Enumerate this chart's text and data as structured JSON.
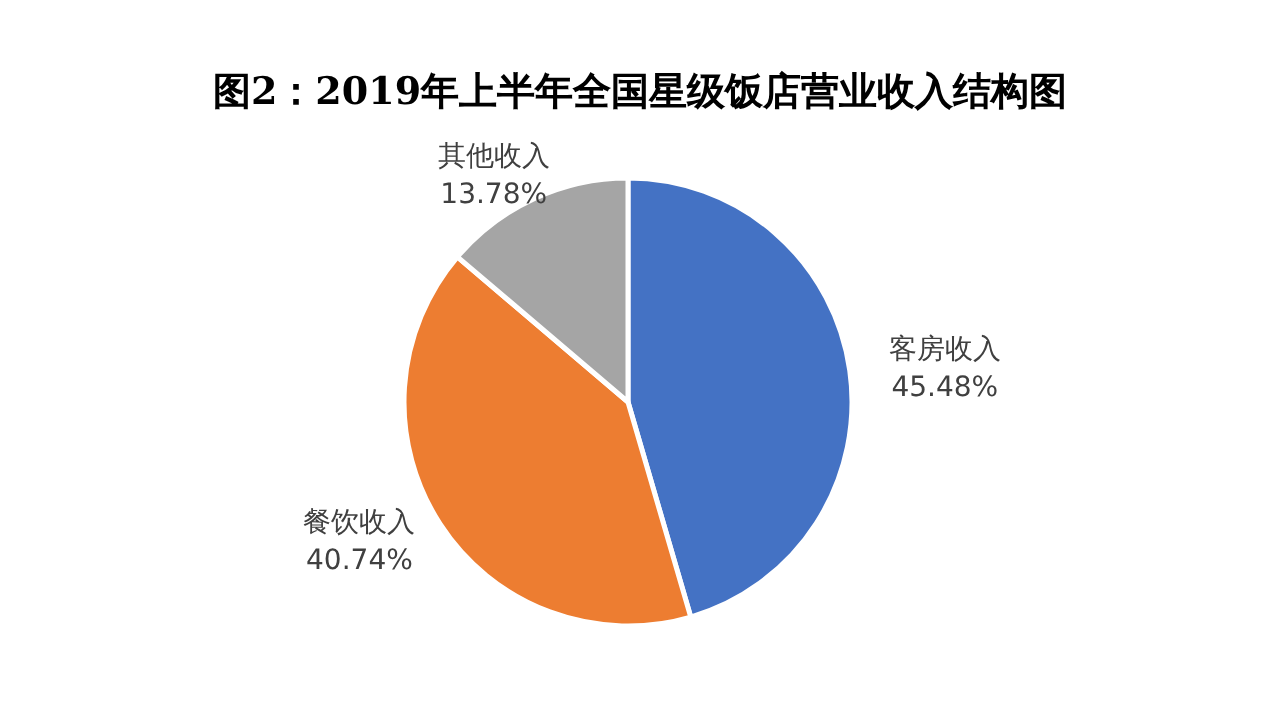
{
  "chart_data": {
    "type": "pie",
    "title": "图2：2019年上半年全国星级饭店营业收入结构图",
    "categories": [
      "客房收入",
      "餐饮收入",
      "其他收入"
    ],
    "values": [
      45.48,
      40.74,
      13.78
    ],
    "value_labels": [
      "45.48%",
      "40.74%",
      "13.78%"
    ],
    "colors": [
      "#4472c4",
      "#ed7d31",
      "#a5a5a5"
    ]
  }
}
